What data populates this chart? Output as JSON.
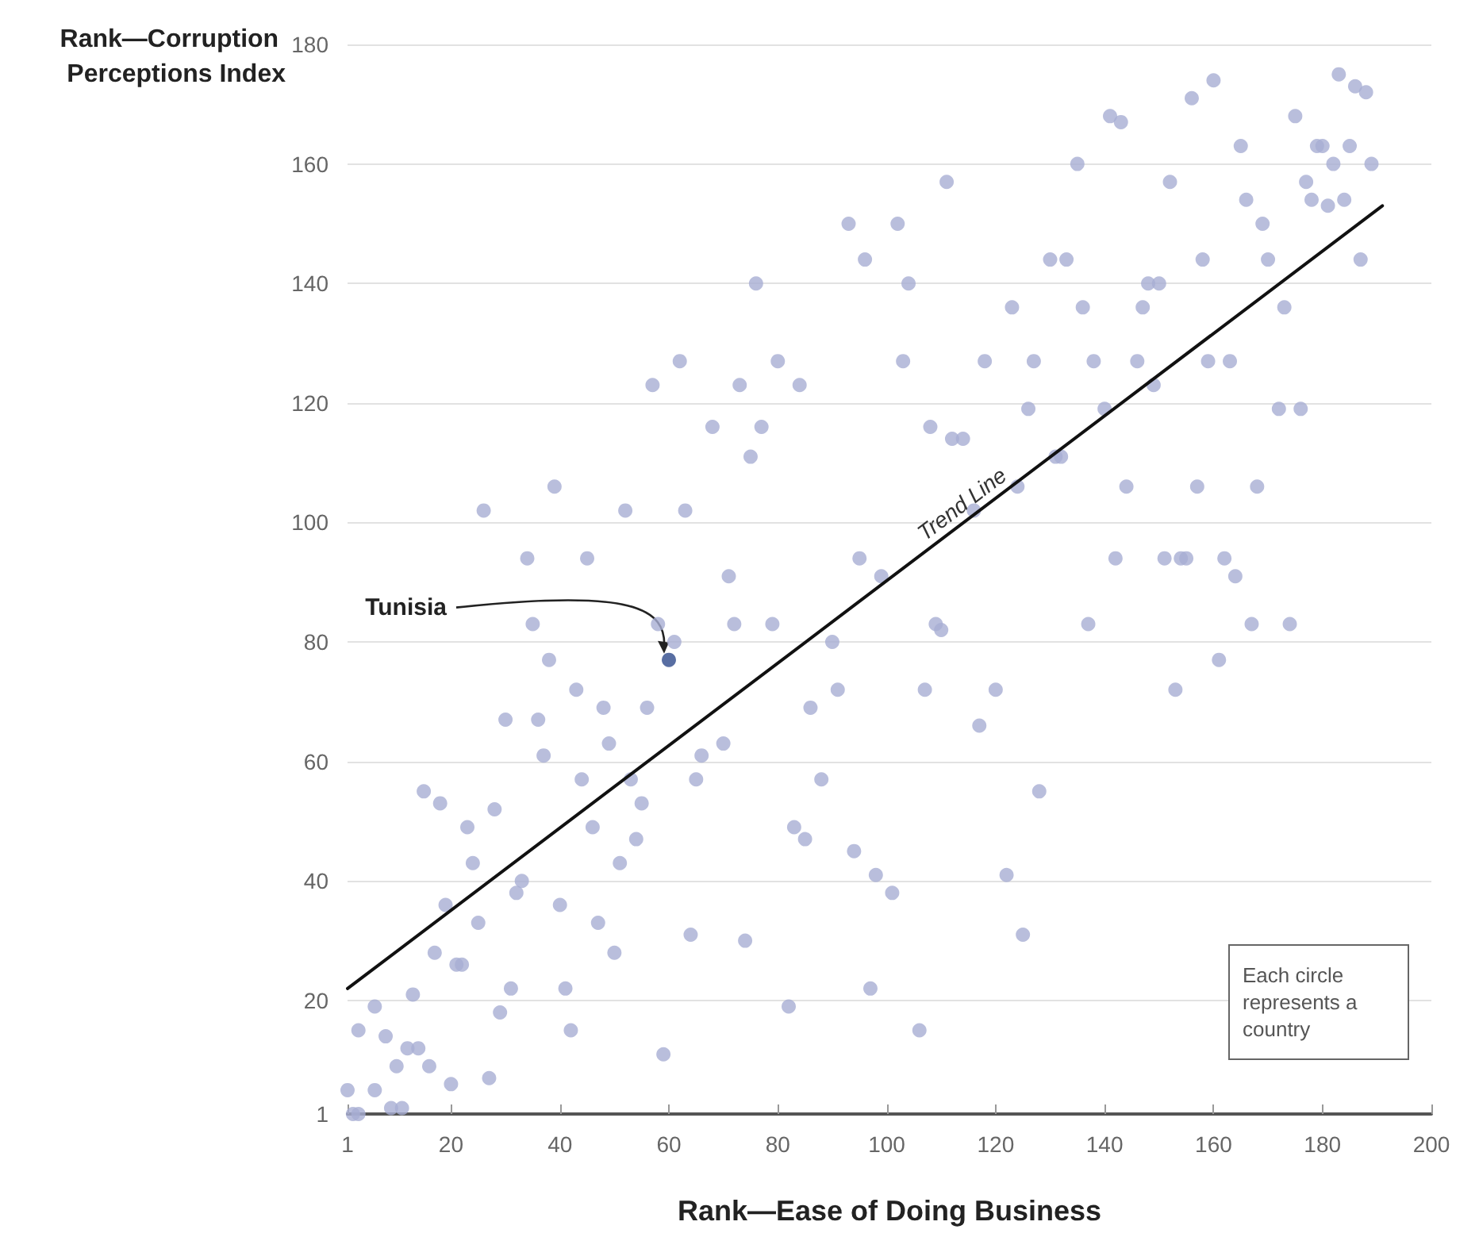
{
  "chart_data": {
    "type": "scatter",
    "xlabel": "Rank—Ease of Doing Business",
    "ylabel": "Rank—Corruption Perceptions Index",
    "xlim": [
      1,
      200
    ],
    "xticks": [
      1,
      20,
      40,
      60,
      80,
      100,
      120,
      140,
      160,
      180,
      200
    ],
    "ylim": [
      1,
      180
    ],
    "yticks": [
      1,
      20,
      40,
      60,
      80,
      100,
      120,
      140,
      160,
      180
    ],
    "grid": "y",
    "legend": false,
    "marker": "circle",
    "annotations": [
      {
        "text": "Tunisia",
        "x": 60,
        "y": 77
      },
      "Each circle represents a country"
    ],
    "series": [
      {
        "color": "#a8aed3",
        "x": [
          1,
          2,
          3,
          3,
          6,
          6,
          8,
          9,
          10,
          11,
          12,
          13,
          14,
          15,
          16,
          17,
          18,
          19,
          20,
          21,
          22,
          23,
          24,
          25,
          26,
          27,
          28,
          29,
          30,
          31,
          32,
          33,
          34,
          35,
          36,
          37,
          38,
          39,
          40,
          41,
          42,
          43,
          44,
          45,
          46,
          47,
          48,
          49,
          50,
          51,
          52,
          53,
          54,
          55,
          56,
          57,
          58,
          59,
          61,
          62,
          63,
          64,
          65,
          66,
          68,
          70,
          71,
          72,
          73,
          74,
          75,
          76,
          77,
          79,
          80,
          82,
          83,
          84,
          85,
          86,
          88,
          90,
          91,
          93,
          94,
          95,
          96,
          97,
          98,
          99,
          101,
          102,
          103,
          104,
          106,
          107,
          108,
          109,
          110,
          111,
          112,
          114,
          116,
          117,
          118,
          120,
          122,
          123,
          124,
          125,
          126,
          127,
          128,
          130,
          131,
          132,
          133,
          135,
          136,
          137,
          138,
          140,
          141,
          142,
          143,
          144,
          146,
          147,
          148,
          149,
          150,
          151,
          152,
          153,
          154,
          155,
          156,
          157,
          158,
          159,
          160,
          161,
          162,
          163,
          164,
          165,
          166,
          167,
          168,
          169,
          170,
          172,
          173,
          174,
          175,
          176,
          177,
          178,
          179,
          180,
          181,
          182,
          183,
          184,
          185,
          186,
          187,
          188,
          189
        ],
        "values": [
          5,
          1,
          1,
          15,
          5,
          19,
          14,
          2,
          9,
          2,
          12,
          21,
          12,
          55,
          9,
          28,
          53,
          36,
          6,
          26,
          26,
          49,
          43,
          33,
          102,
          7,
          52,
          18,
          67,
          22,
          38,
          40,
          94,
          83,
          67,
          61,
          77,
          106,
          36,
          22,
          15,
          72,
          57,
          94,
          49,
          33,
          69,
          63,
          28,
          43,
          102,
          57,
          47,
          53,
          69,
          123,
          83,
          11,
          80,
          127,
          102,
          31,
          57,
          61,
          116,
          63,
          91,
          83,
          123,
          30,
          111,
          140,
          116,
          83,
          127,
          19,
          49,
          123,
          47,
          69,
          57,
          80,
          72,
          150,
          45,
          94,
          144,
          22,
          41,
          91,
          38,
          150,
          127,
          140,
          15,
          72,
          116,
          83,
          82,
          157,
          114,
          114,
          102,
          66,
          127,
          72,
          41,
          136,
          106,
          31,
          119,
          127,
          55,
          144,
          111,
          111,
          144,
          160,
          136,
          83,
          127,
          119,
          168,
          94,
          167,
          106,
          127,
          136,
          140,
          123,
          140,
          94,
          157,
          72,
          94,
          94,
          171,
          106,
          144,
          127,
          174,
          77,
          94,
          127,
          91,
          163,
          154,
          83,
          106,
          150,
          144,
          119,
          136,
          83,
          168,
          119,
          157,
          154,
          163,
          163,
          153,
          160,
          175,
          154,
          163,
          173,
          144,
          172,
          160
        ]
      },
      {
        "color": "#2e4a8b",
        "x": [
          60
        ],
        "values": [
          77
        ]
      },
      {
        "type": "line",
        "name": "Trend Line",
        "color": "#111111",
        "marker": "none",
        "x": [
          1,
          191
        ],
        "values": [
          22,
          153
        ]
      }
    ]
  }
}
